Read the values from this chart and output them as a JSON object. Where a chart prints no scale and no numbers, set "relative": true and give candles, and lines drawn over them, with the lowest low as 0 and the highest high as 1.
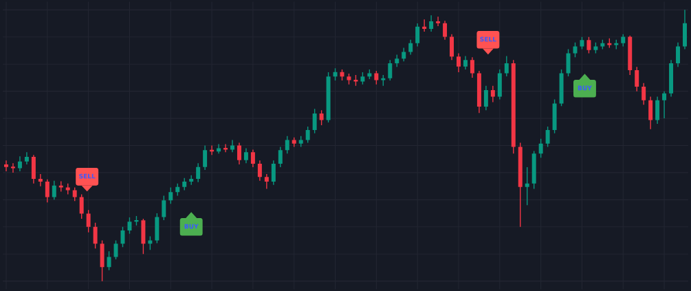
{
  "chart_data": {
    "type": "candlestick",
    "relative": true,
    "grid": true,
    "tick_labels": false,
    "categories": [
      null,
      null,
      null,
      null,
      null,
      null,
      null,
      null,
      null,
      null,
      null,
      null,
      null,
      null,
      null,
      null,
      null,
      null,
      null,
      null,
      null,
      null,
      null,
      null,
      null,
      null,
      null,
      null,
      null,
      null,
      null,
      null,
      null,
      null,
      null,
      null,
      null,
      null,
      null,
      null,
      null,
      null,
      null,
      null,
      null,
      null,
      null,
      null,
      null,
      null,
      null,
      null,
      null,
      null,
      null,
      null,
      null,
      null,
      null,
      null,
      null,
      null,
      null,
      null,
      null,
      null,
      null,
      null,
      null,
      null,
      null,
      null,
      null,
      null,
      null,
      null,
      null,
      null,
      null,
      null,
      null,
      null,
      null,
      null,
      null,
      null,
      null,
      null,
      null,
      null,
      null,
      null,
      null,
      null,
      null,
      null,
      null,
      null,
      null,
      null
    ],
    "colors": [
      "#f23645",
      "#f23645",
      "#089981",
      "#089981",
      "#f23645",
      "#f23645",
      "#f23645",
      "#089981",
      "#f23645",
      "#f23645",
      "#f23645",
      "#f23645",
      "#f23645",
      "#f23645",
      "#f23645",
      "#089981",
      "#089981",
      "#089981",
      "#089981",
      "#089981",
      "#f23645",
      "#089981",
      "#089981",
      "#089981",
      "#089981",
      "#089981",
      "#089981",
      "#089981",
      "#089981",
      "#089981",
      "#f23645",
      "#089981",
      "#f23645",
      "#089981",
      "#f23645",
      "#089981",
      "#f23645",
      "#f23645",
      "#f23645",
      "#089981",
      "#089981",
      "#089981",
      "#f23645",
      "#089981",
      "#089981",
      "#089981",
      "#f23645",
      "#089981",
      "#089981",
      "#f23645",
      "#f23645",
      "#f23645",
      "#089981",
      "#089981",
      "#f23645",
      "#089981",
      "#089981",
      "#089981",
      "#089981",
      "#089981",
      "#089981",
      "#f23645",
      "#089981",
      "#f23645",
      "#f23645",
      "#f23645",
      "#f23645",
      "#089981",
      "#f23645",
      "#f23645",
      "#089981",
      "#f23645",
      "#089981",
      "#089981",
      "#f23645",
      "#f23645",
      "#089981",
      "#089981",
      "#089981",
      "#089981",
      "#089981",
      "#089981",
      "#089981",
      "#089981",
      "#089981",
      "#f23645",
      "#089981",
      "#089981",
      "#f23645",
      "#089981",
      "#089981",
      "#f23645",
      "#f23645",
      "#f23645",
      "#f23645",
      "#089981",
      "#089981",
      "#089981",
      "#089981",
      "#089981"
    ],
    "annotations": [
      "SELL",
      "BUY",
      "SELL",
      "BUY"
    ],
    "ohlc": [
      [
        0.43,
        0.445,
        0.405,
        0.421
      ],
      [
        0.421,
        0.435,
        0.4,
        0.416
      ],
      [
        0.416,
        0.46,
        0.405,
        0.441
      ],
      [
        0.441,
        0.475,
        0.43,
        0.458
      ],
      [
        0.458,
        0.465,
        0.36,
        0.377
      ],
      [
        0.377,
        0.395,
        0.35,
        0.367
      ],
      [
        0.367,
        0.375,
        0.29,
        0.31
      ],
      [
        0.31,
        0.37,
        0.3,
        0.352
      ],
      [
        0.352,
        0.368,
        0.33,
        0.345
      ],
      [
        0.345,
        0.36,
        0.32,
        0.335
      ],
      [
        0.335,
        0.345,
        0.295,
        0.31
      ],
      [
        0.31,
        0.32,
        0.23,
        0.249
      ],
      [
        0.249,
        0.262,
        0.18,
        0.2
      ],
      [
        0.2,
        0.215,
        0.12,
        0.138
      ],
      [
        0.138,
        0.15,
        0.0,
        0.052
      ],
      [
        0.052,
        0.11,
        0.04,
        0.089
      ],
      [
        0.089,
        0.15,
        0.08,
        0.138
      ],
      [
        0.138,
        0.2,
        0.125,
        0.187
      ],
      [
        0.187,
        0.235,
        0.175,
        0.219
      ],
      [
        0.219,
        0.24,
        0.205,
        0.224
      ],
      [
        0.224,
        0.23,
        0.1,
        0.138
      ],
      [
        0.138,
        0.165,
        0.115,
        0.15
      ],
      [
        0.15,
        0.25,
        0.14,
        0.236
      ],
      [
        0.236,
        0.315,
        0.225,
        0.298
      ],
      [
        0.298,
        0.345,
        0.285,
        0.328
      ],
      [
        0.328,
        0.36,
        0.315,
        0.347
      ],
      [
        0.347,
        0.38,
        0.335,
        0.367
      ],
      [
        0.367,
        0.39,
        0.355,
        0.377
      ],
      [
        0.377,
        0.435,
        0.365,
        0.421
      ],
      [
        0.421,
        0.5,
        0.41,
        0.483
      ],
      [
        0.483,
        0.5,
        0.465,
        0.478
      ],
      [
        0.478,
        0.505,
        0.47,
        0.49
      ],
      [
        0.49,
        0.505,
        0.475,
        0.485
      ],
      [
        0.485,
        0.52,
        0.475,
        0.5
      ],
      [
        0.5,
        0.51,
        0.43,
        0.446
      ],
      [
        0.446,
        0.49,
        0.435,
        0.475
      ],
      [
        0.475,
        0.485,
        0.42,
        0.433
      ],
      [
        0.433,
        0.445,
        0.37,
        0.384
      ],
      [
        0.384,
        0.395,
        0.34,
        0.367
      ],
      [
        0.367,
        0.445,
        0.355,
        0.433
      ],
      [
        0.433,
        0.495,
        0.42,
        0.483
      ],
      [
        0.483,
        0.535,
        0.47,
        0.52
      ],
      [
        0.52,
        0.53,
        0.495,
        0.507
      ],
      [
        0.507,
        0.535,
        0.495,
        0.52
      ],
      [
        0.52,
        0.57,
        0.51,
        0.557
      ],
      [
        0.557,
        0.635,
        0.545,
        0.618
      ],
      [
        0.618,
        0.63,
        0.575,
        0.594
      ],
      [
        0.594,
        0.77,
        0.585,
        0.754
      ],
      [
        0.754,
        0.785,
        0.74,
        0.771
      ],
      [
        0.771,
        0.78,
        0.74,
        0.754
      ],
      [
        0.754,
        0.765,
        0.725,
        0.741
      ],
      [
        0.741,
        0.76,
        0.72,
        0.736
      ],
      [
        0.736,
        0.77,
        0.725,
        0.754
      ],
      [
        0.754,
        0.78,
        0.745,
        0.766
      ],
      [
        0.766,
        0.775,
        0.725,
        0.741
      ],
      [
        0.741,
        0.76,
        0.72,
        0.748
      ],
      [
        0.748,
        0.815,
        0.74,
        0.803
      ],
      [
        0.803,
        0.835,
        0.79,
        0.82
      ],
      [
        0.82,
        0.86,
        0.81,
        0.845
      ],
      [
        0.845,
        0.89,
        0.835,
        0.877
      ],
      [
        0.877,
        0.95,
        0.865,
        0.938
      ],
      [
        0.938,
        0.965,
        0.92,
        0.93
      ],
      [
        0.93,
        0.98,
        0.92,
        0.958
      ],
      [
        0.958,
        0.975,
        0.94,
        0.951
      ],
      [
        0.951,
        0.96,
        0.89,
        0.901
      ],
      [
        0.901,
        0.91,
        0.815,
        0.828
      ],
      [
        0.828,
        0.84,
        0.77,
        0.791
      ],
      [
        0.791,
        0.83,
        0.78,
        0.815
      ],
      [
        0.815,
        0.825,
        0.75,
        0.766
      ],
      [
        0.766,
        0.775,
        0.62,
        0.643
      ],
      [
        0.643,
        0.72,
        0.63,
        0.704
      ],
      [
        0.704,
        0.72,
        0.66,
        0.68
      ],
      [
        0.68,
        0.78,
        0.67,
        0.766
      ],
      [
        0.766,
        0.83,
        0.755,
        0.803
      ],
      [
        0.803,
        0.815,
        0.47,
        0.495
      ],
      [
        0.495,
        0.51,
        0.2,
        0.347
      ],
      [
        0.347,
        0.42,
        0.28,
        0.36
      ],
      [
        0.36,
        0.48,
        0.34,
        0.47
      ],
      [
        0.47,
        0.525,
        0.455,
        0.507
      ],
      [
        0.507,
        0.57,
        0.495,
        0.557
      ],
      [
        0.557,
        0.67,
        0.545,
        0.655
      ],
      [
        0.655,
        0.78,
        0.645,
        0.766
      ],
      [
        0.766,
        0.855,
        0.755,
        0.84
      ],
      [
        0.84,
        0.88,
        0.825,
        0.865
      ],
      [
        0.865,
        0.9,
        0.855,
        0.889
      ],
      [
        0.889,
        0.9,
        0.84,
        0.852
      ],
      [
        0.852,
        0.88,
        0.84,
        0.865
      ],
      [
        0.865,
        0.89,
        0.855,
        0.877
      ],
      [
        0.877,
        0.895,
        0.86,
        0.87
      ],
      [
        0.87,
        0.89,
        0.855,
        0.877
      ],
      [
        0.877,
        0.91,
        0.865,
        0.901
      ],
      [
        0.901,
        0.905,
        0.76,
        0.778
      ],
      [
        0.778,
        0.79,
        0.7,
        0.717
      ],
      [
        0.717,
        0.73,
        0.65,
        0.667
      ],
      [
        0.667,
        0.68,
        0.56,
        0.594
      ],
      [
        0.594,
        0.68,
        0.58,
        0.667
      ],
      [
        0.667,
        0.7,
        0.6,
        0.692
      ],
      [
        0.692,
        0.815,
        0.68,
        0.803
      ],
      [
        0.803,
        0.88,
        0.79,
        0.865
      ],
      [
        0.865,
        1.0,
        0.855,
        0.951
      ]
    ]
  }
}
